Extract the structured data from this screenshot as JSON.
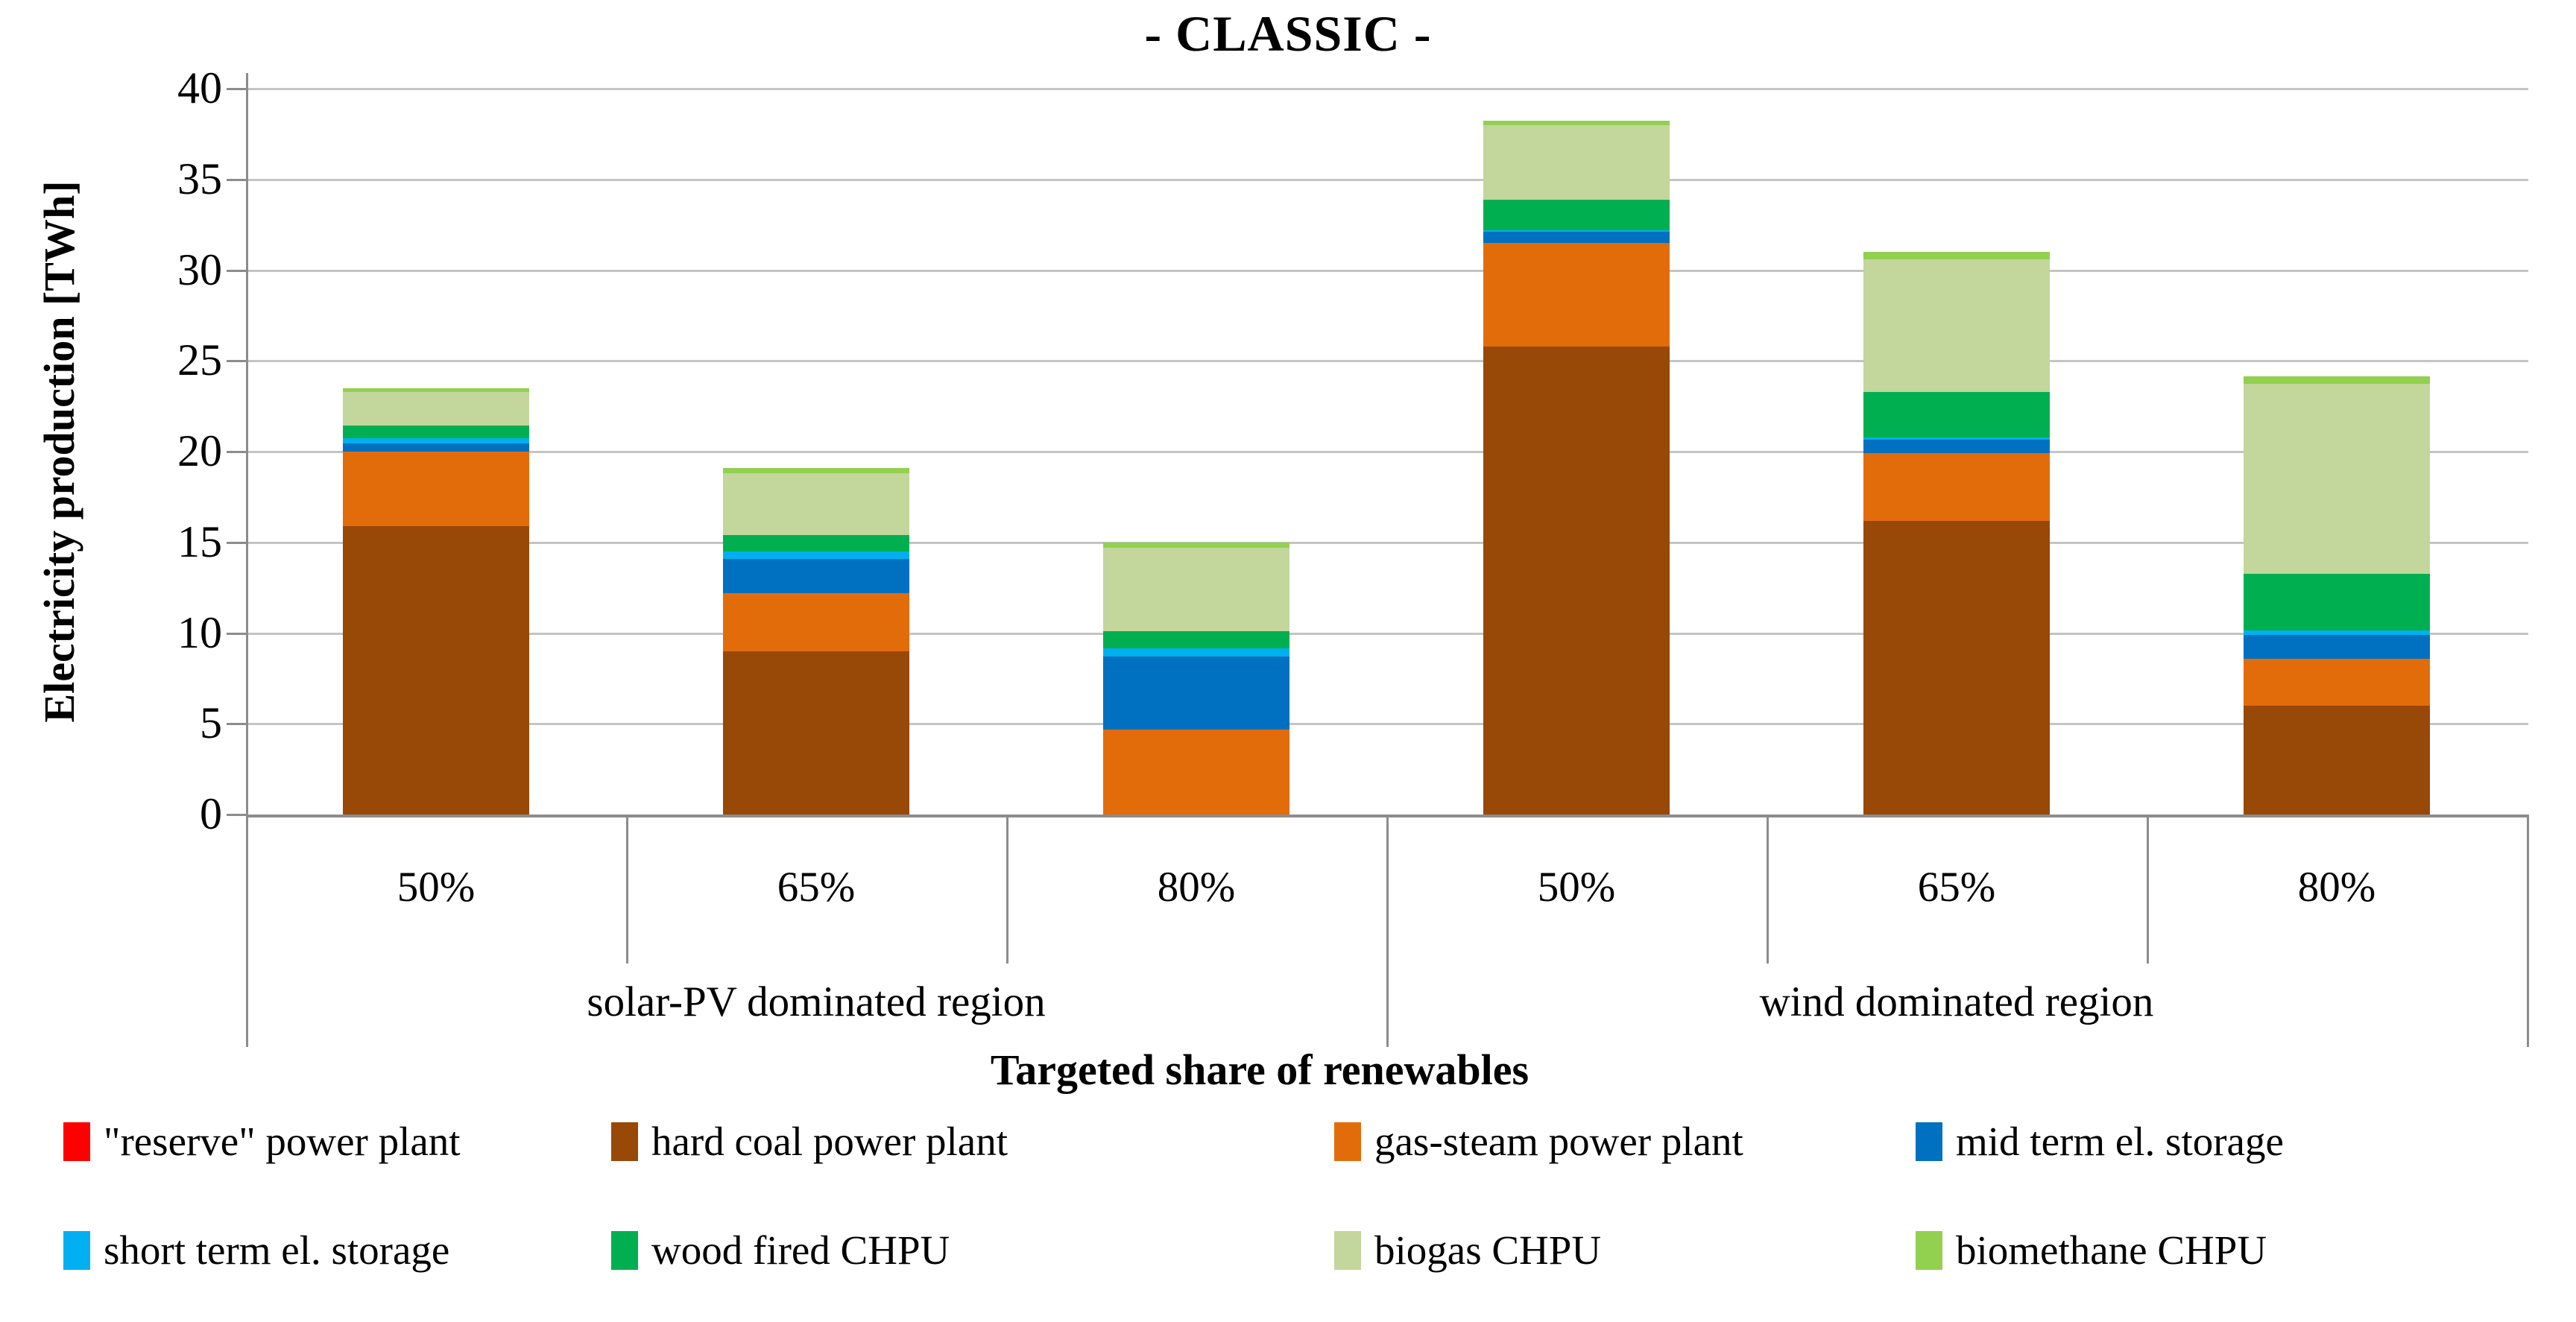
{
  "chart_data": {
    "type": "bar",
    "subtype": "stacked-vertical",
    "title": "- CLASSIC -",
    "ylabel": "Electricity production [TWh]",
    "xlabel": "Targeted share of renewables",
    "ylim": [
      0,
      40
    ],
    "ytick_step": 5,
    "yticks": [
      "0",
      "5",
      "10",
      "15",
      "20",
      "25",
      "30",
      "35",
      "40"
    ],
    "grid": true,
    "background": "#ffffff",
    "gridline_color": "#c4c4c4",
    "axis_color": "#8c8c8c",
    "groups": [
      {
        "label": "solar-PV dominated region",
        "categories": [
          "50%",
          "65%",
          "80%"
        ]
      },
      {
        "label": "wind dominated region",
        "categories": [
          "50%",
          "65%",
          "80%"
        ]
      }
    ],
    "bar_order_note": "six bars = solar 50/65/80 then wind 50/65/80; series stacked bottom-to-top in listed order",
    "series": [
      {
        "name": "\"reserve\" power plant",
        "color": "#ff0000",
        "values": [
          0,
          0,
          0,
          0,
          0,
          0
        ]
      },
      {
        "name": "hard coal power plant",
        "color": "#984807",
        "values": [
          15.9,
          9.0,
          0,
          25.8,
          16.2,
          6.0
        ]
      },
      {
        "name": "gas-steam power plant",
        "color": "#e36c0a",
        "values": [
          4.1,
          3.2,
          4.7,
          5.7,
          3.7,
          2.6
        ]
      },
      {
        "name": "mid term el. storage",
        "color": "#0070c0",
        "values": [
          0.45,
          1.9,
          4.0,
          0.6,
          0.75,
          1.3
        ]
      },
      {
        "name": "short term el. storage",
        "color": "#00b0f0",
        "values": [
          0.3,
          0.4,
          0.45,
          0.1,
          0.15,
          0.25
        ]
      },
      {
        "name": "wood fired CHPU",
        "color": "#00b050",
        "values": [
          0.7,
          0.9,
          0.95,
          1.7,
          2.5,
          3.1
        ]
      },
      {
        "name": "biogas CHPU",
        "color": "#c3d69b",
        "values": [
          1.85,
          3.4,
          4.6,
          4.1,
          7.3,
          10.5
        ]
      },
      {
        "name": "biomethane CHPU",
        "color": "#92d050",
        "values": [
          0.2,
          0.3,
          0.3,
          0.25,
          0.4,
          0.4
        ]
      }
    ],
    "totals": [
      23.5,
      19.1,
      15.0,
      38.25,
      31.0,
      24.15
    ],
    "legend_position": "bottom",
    "legend_rows": [
      [
        "\"reserve\" power plant",
        "hard coal power plant",
        "gas-steam power plant",
        "mid term el. storage"
      ],
      [
        "short term el. storage",
        "wood fired CHPU",
        "biogas CHPU",
        "biomethane CHPU"
      ]
    ]
  }
}
